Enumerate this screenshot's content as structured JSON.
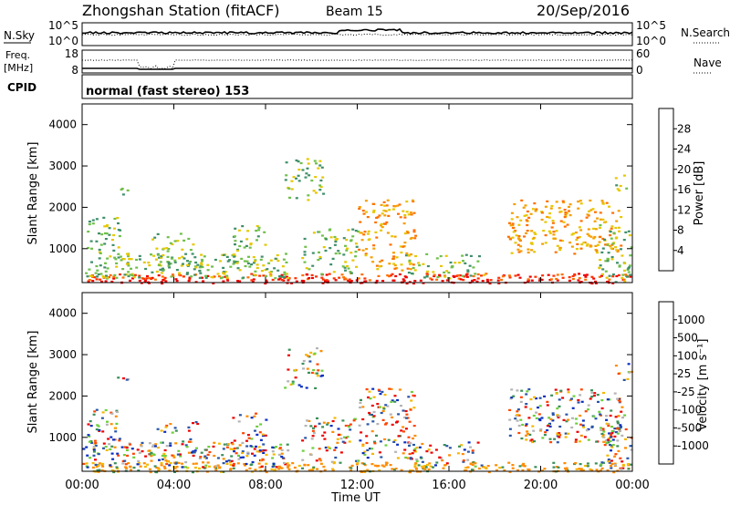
{
  "header": {
    "station": "Zhongshan Station (fitACF)",
    "beam": "Beam 15",
    "date": "20/Sep/2016",
    "cpid_label": "CPID",
    "cpid_value": "normal (fast stereo) 153"
  },
  "nsky_panel": {
    "left_label": "N.Sky",
    "left_ticks": [
      "10^5",
      "10^0"
    ],
    "right_label": "N.Search",
    "right_ticks": [
      "10^5",
      "10^0"
    ]
  },
  "freq_panel": {
    "left_label_1": "Freq.",
    "left_label_2": "[MHz]",
    "left_ticks": [
      "18",
      "8"
    ],
    "right_label": "Nave",
    "right_ticks": [
      "60",
      "0"
    ]
  },
  "colors": {
    "power": [
      "#0000ff",
      "#2c4fa8",
      "#3f8f6a",
      "#6fbf4a",
      "#e6c700",
      "#f5a000",
      "#ff7000",
      "#ff3000",
      "#ee0000"
    ],
    "velocity": [
      "#ee0000",
      "#ff4500",
      "#ff8c00",
      "#f5b800",
      "#b4b4b4",
      "#6bcf3a",
      "#3a8f58",
      "#2a56a8",
      "#0a2fc0"
    ]
  },
  "chart_data": [
    {
      "type": "heatmap",
      "title": "Power",
      "xlabel": "",
      "ylabel": "Slant Range [km]",
      "xlim": [
        "00:00",
        "00:00"
      ],
      "xticks": [
        "00:00",
        "04:00",
        "08:00",
        "12:00",
        "16:00",
        "20:00",
        "00:00"
      ],
      "ylim": [
        180,
        4500
      ],
      "yticks": [
        "1000",
        "2000",
        "3000",
        "4000"
      ],
      "colorbar": {
        "label": "Power [dB]",
        "ticks": [
          "28",
          "24",
          "20",
          "16",
          "12",
          "8",
          "4"
        ],
        "range": [
          0,
          30
        ]
      }
    },
    {
      "type": "heatmap",
      "title": "Velocity",
      "xlabel": "Time UT",
      "ylabel": "Slant Range [km]",
      "xlim": [
        "00:00",
        "00:00"
      ],
      "xticks": [
        "00:00",
        "04:00",
        "08:00",
        "12:00",
        "16:00",
        "20:00",
        "00:00"
      ],
      "ylim": [
        180,
        4500
      ],
      "yticks": [
        "1000",
        "2000",
        "3000",
        "4000"
      ],
      "colorbar": {
        "label": "Velocity [m s⁻¹]",
        "ticks": [
          "1000",
          "500",
          "100",
          "25",
          "-25",
          "-100",
          "-500",
          "-1000"
        ],
        "range": [
          -1000,
          1000
        ]
      }
    }
  ]
}
